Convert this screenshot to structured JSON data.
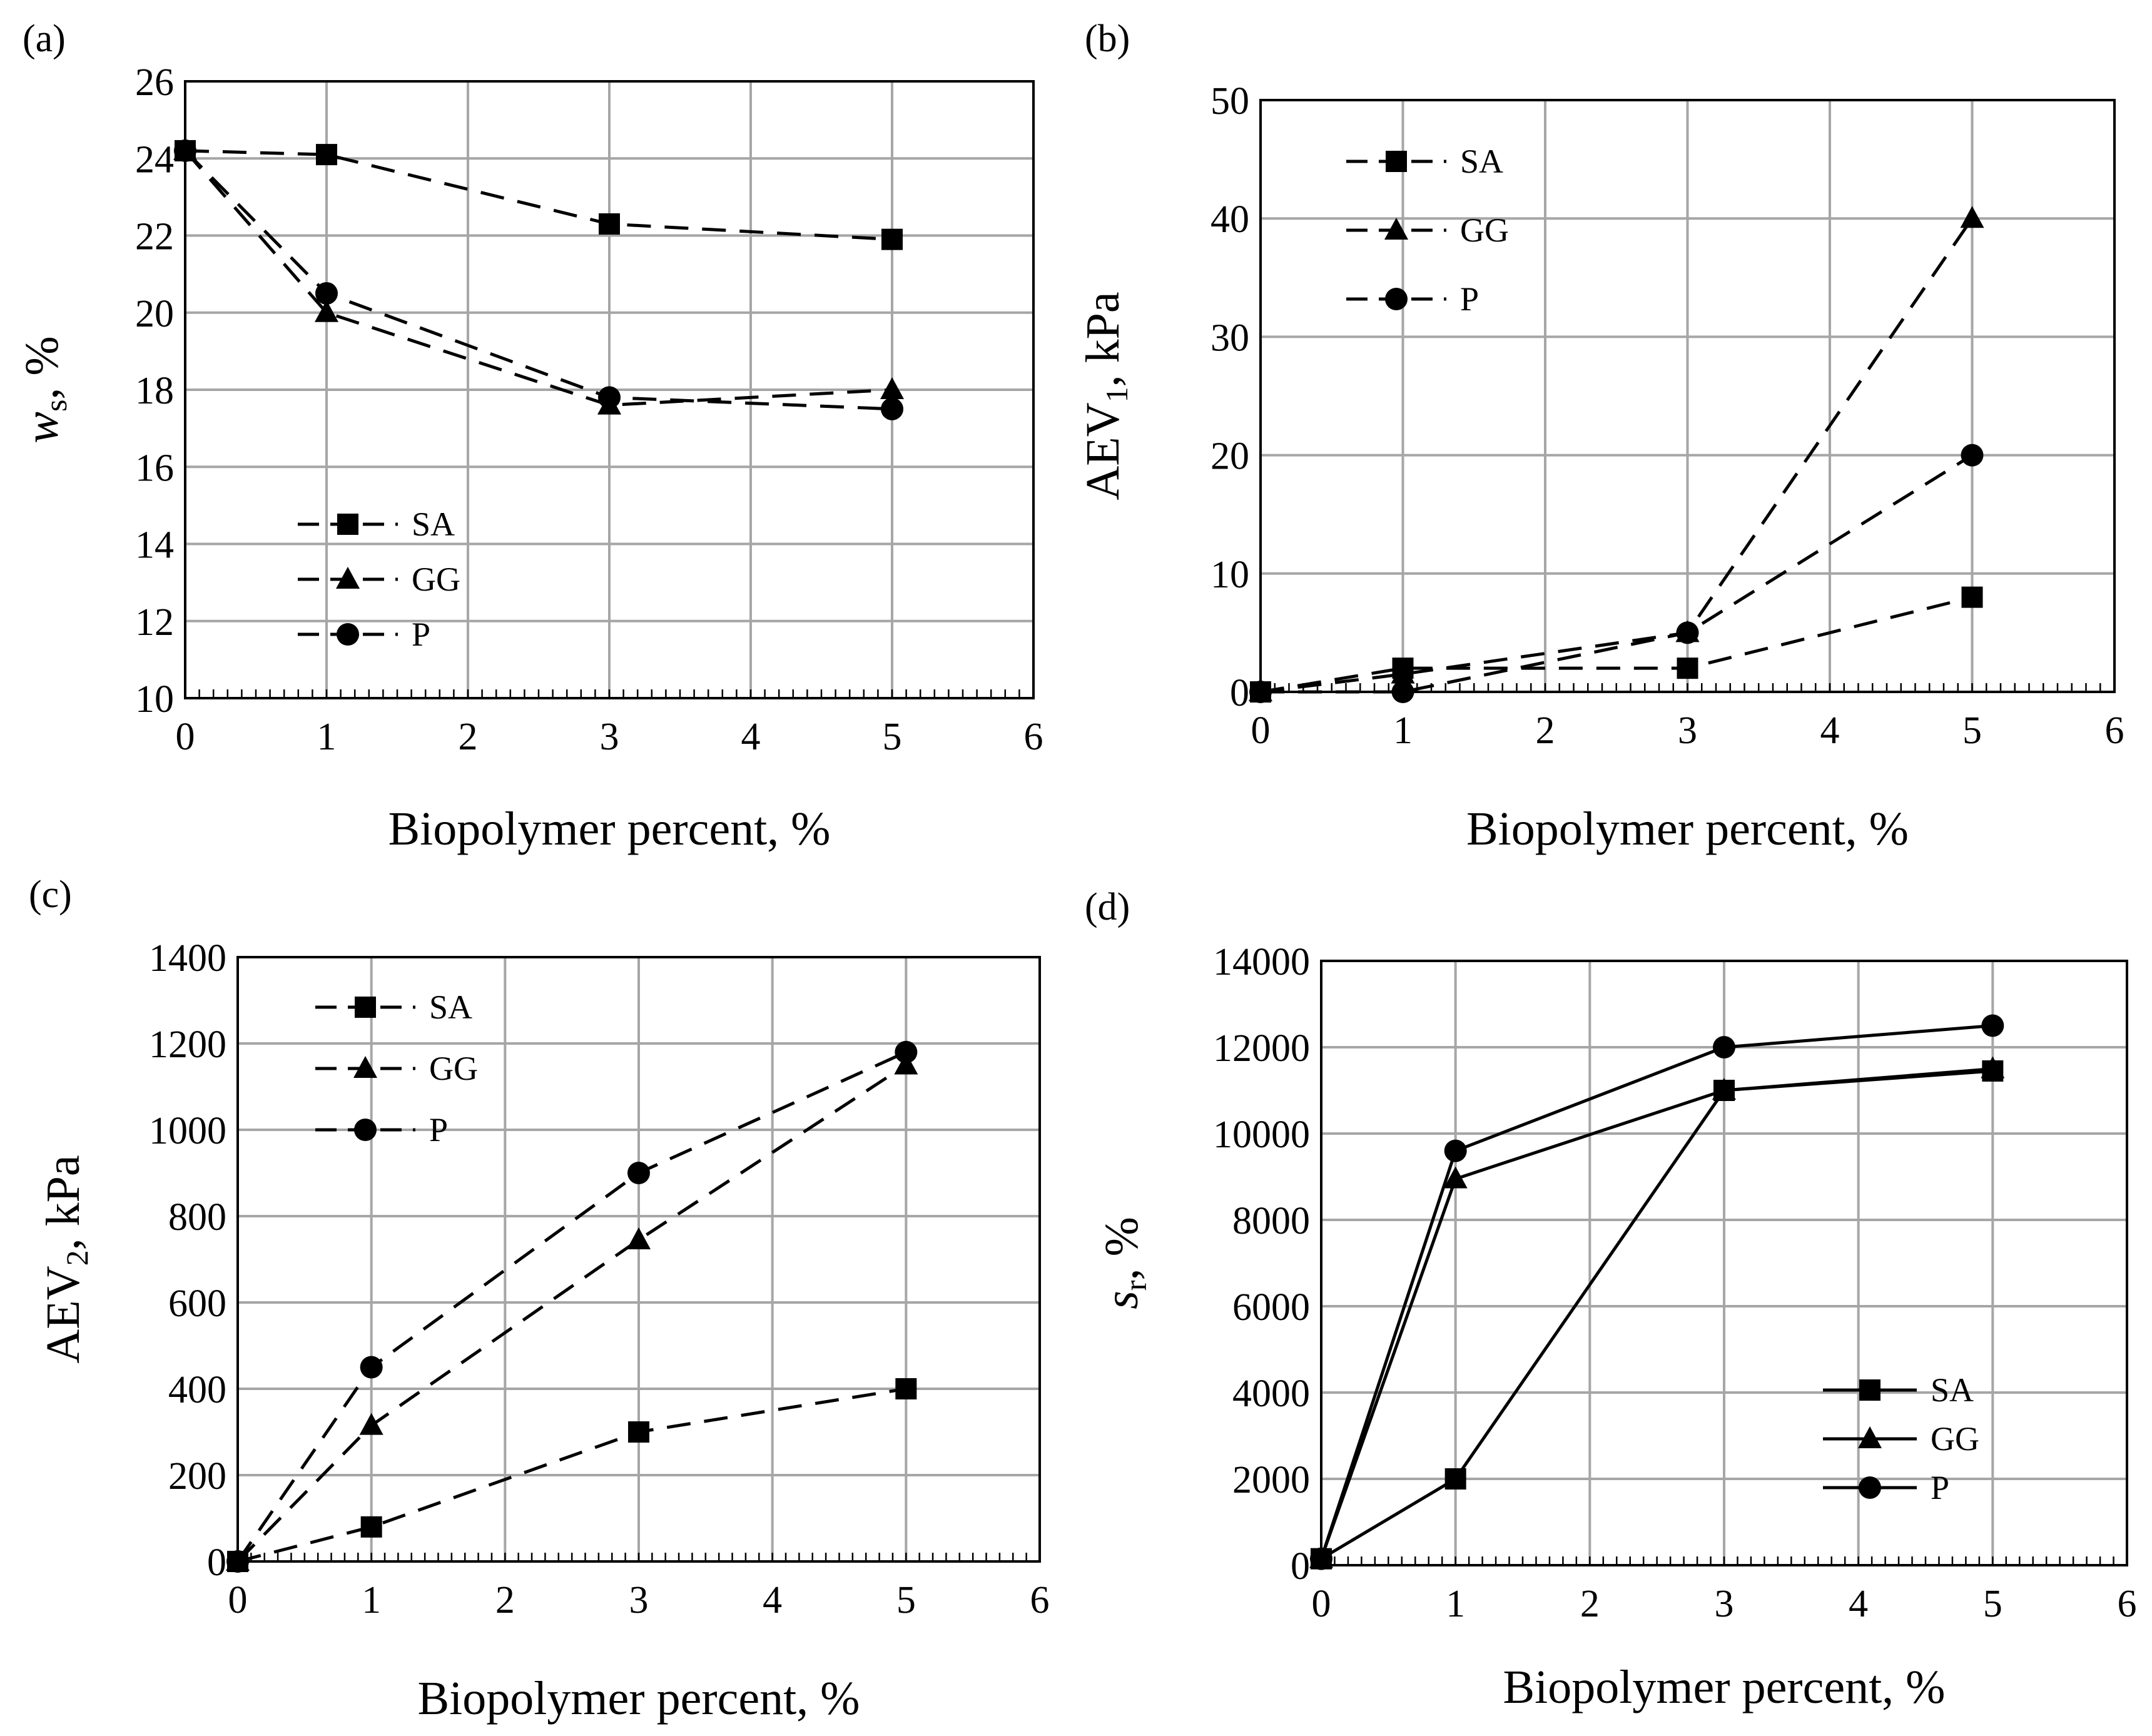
{
  "chart_data": [
    {
      "panel": "(a)",
      "type": "line",
      "xlabel": "Biopolymer percent, %",
      "ylabel": "w",
      "ylabel_sub": "s",
      "ylabel_suffix": ", %",
      "xlim": [
        0,
        6
      ],
      "ylim": [
        10,
        26
      ],
      "xticks": [
        0,
        1,
        2,
        3,
        4,
        5,
        6
      ],
      "yticks": [
        10,
        12,
        14,
        16,
        18,
        20,
        22,
        24,
        26
      ],
      "line_style": "dashed",
      "legend_position": "lower-left",
      "series": [
        {
          "name": "SA",
          "marker": "square",
          "x": [
            0,
            1,
            3,
            5
          ],
          "y": [
            24.2,
            24.1,
            22.3,
            21.9
          ]
        },
        {
          "name": "GG",
          "marker": "triangle",
          "x": [
            0,
            1,
            3,
            5
          ],
          "y": [
            24.2,
            20.0,
            17.6,
            18.0
          ]
        },
        {
          "name": "P",
          "marker": "circle",
          "x": [
            0,
            1,
            3,
            5
          ],
          "y": [
            24.2,
            20.5,
            17.8,
            17.5
          ]
        }
      ]
    },
    {
      "panel": "(b)",
      "type": "line",
      "xlabel": "Biopolymer percent, %",
      "ylabel": "AEV",
      "ylabel_sub": "1",
      "ylabel_suffix": ", kPa",
      "xlim": [
        0,
        6
      ],
      "ylim": [
        0,
        50
      ],
      "xticks": [
        0,
        1,
        2,
        3,
        4,
        5,
        6
      ],
      "yticks": [
        0,
        10,
        20,
        30,
        40,
        50
      ],
      "line_style": "dashed",
      "legend_position": "top-left",
      "series": [
        {
          "name": "SA",
          "marker": "square",
          "x": [
            0,
            1,
            3,
            5
          ],
          "y": [
            0,
            2,
            2,
            8
          ]
        },
        {
          "name": "GG",
          "marker": "triangle",
          "x": [
            0,
            1,
            3,
            5
          ],
          "y": [
            0,
            1.5,
            5,
            40
          ]
        },
        {
          "name": "P",
          "marker": "circle",
          "x": [
            0,
            1,
            3,
            5
          ],
          "y": [
            0,
            0,
            5,
            20
          ]
        }
      ]
    },
    {
      "panel": "(c)",
      "type": "line",
      "xlabel": "Biopolymer percent, %",
      "ylabel": "AEV",
      "ylabel_sub": "2",
      "ylabel_suffix": ", kPa",
      "xlim": [
        0,
        6
      ],
      "ylim": [
        0,
        1400
      ],
      "xticks": [
        0,
        1,
        2,
        3,
        4,
        5,
        6
      ],
      "yticks": [
        0,
        200,
        400,
        600,
        800,
        1000,
        1200,
        1400
      ],
      "line_style": "dashed",
      "legend_position": "top-left",
      "series": [
        {
          "name": "SA",
          "marker": "square",
          "x": [
            0,
            1,
            3,
            5
          ],
          "y": [
            0,
            80,
            300,
            400
          ]
        },
        {
          "name": "GG",
          "marker": "triangle",
          "x": [
            0,
            1,
            3,
            5
          ],
          "y": [
            0,
            315,
            745,
            1150
          ]
        },
        {
          "name": "P",
          "marker": "circle",
          "x": [
            0,
            1,
            3,
            5
          ],
          "y": [
            0,
            450,
            900,
            1180
          ]
        }
      ]
    },
    {
      "panel": "(d)",
      "type": "line",
      "xlabel": "Biopolymer percent, %",
      "ylabel": "s",
      "ylabel_sub": "r",
      "ylabel_suffix": ", %",
      "xlim": [
        0,
        6
      ],
      "ylim": [
        0,
        14000
      ],
      "xticks": [
        0,
        1,
        2,
        3,
        4,
        5,
        6
      ],
      "yticks": [
        0,
        2000,
        4000,
        6000,
        8000,
        10000,
        12000,
        14000
      ],
      "line_style": "solid",
      "legend_position": "lower-right",
      "series": [
        {
          "name": "SA",
          "marker": "square",
          "x": [
            0,
            1,
            3,
            5
          ],
          "y": [
            150,
            2000,
            11000,
            11450
          ]
        },
        {
          "name": "GG",
          "marker": "triangle",
          "x": [
            0,
            1,
            3,
            5
          ],
          "y": [
            150,
            8950,
            11000,
            11500
          ]
        },
        {
          "name": "P",
          "marker": "circle",
          "x": [
            0,
            1,
            3,
            5
          ],
          "y": [
            150,
            9600,
            12000,
            12500
          ]
        }
      ]
    }
  ]
}
